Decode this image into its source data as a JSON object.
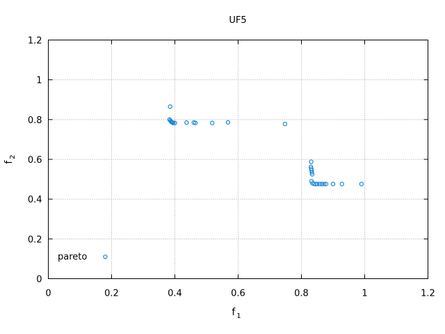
{
  "chart_data": {
    "type": "scatter",
    "title": "UF5",
    "xlabel": {
      "main": "f",
      "sub": "1"
    },
    "ylabel": {
      "main": "f",
      "sub": "2"
    },
    "xlim": [
      0,
      1.2
    ],
    "ylim": [
      0,
      1.2
    ],
    "xticks": [
      "0",
      "0.2",
      "0.4",
      "0.6",
      "0.8",
      "1",
      "1.2"
    ],
    "yticks": [
      "0",
      "0.2",
      "0.4",
      "0.6",
      "0.8",
      "1",
      "1.2"
    ],
    "grid": true,
    "legend_position": "bottom-left",
    "series": [
      {
        "name": "pareto",
        "color": "#1a87d6",
        "marker": "open-circle",
        "points": [
          [
            0.18,
            0.11
          ],
          [
            0.385,
            0.865
          ],
          [
            0.383,
            0.8
          ],
          [
            0.386,
            0.795
          ],
          [
            0.388,
            0.79
          ],
          [
            0.39,
            0.787
          ],
          [
            0.392,
            0.785
          ],
          [
            0.395,
            0.783
          ],
          [
            0.4,
            0.783
          ],
          [
            0.437,
            0.785
          ],
          [
            0.46,
            0.785
          ],
          [
            0.465,
            0.783
          ],
          [
            0.518,
            0.783
          ],
          [
            0.568,
            0.786
          ],
          [
            0.748,
            0.778
          ],
          [
            0.831,
            0.588
          ],
          [
            0.83,
            0.562
          ],
          [
            0.831,
            0.553
          ],
          [
            0.832,
            0.545
          ],
          [
            0.833,
            0.535
          ],
          [
            0.834,
            0.525
          ],
          [
            0.832,
            0.49
          ],
          [
            0.835,
            0.48
          ],
          [
            0.84,
            0.477
          ],
          [
            0.845,
            0.476
          ],
          [
            0.85,
            0.476
          ],
          [
            0.858,
            0.476
          ],
          [
            0.865,
            0.476
          ],
          [
            0.872,
            0.476
          ],
          [
            0.878,
            0.476
          ],
          [
            0.9,
            0.476
          ],
          [
            0.928,
            0.476
          ],
          [
            0.99,
            0.476
          ]
        ]
      }
    ]
  }
}
